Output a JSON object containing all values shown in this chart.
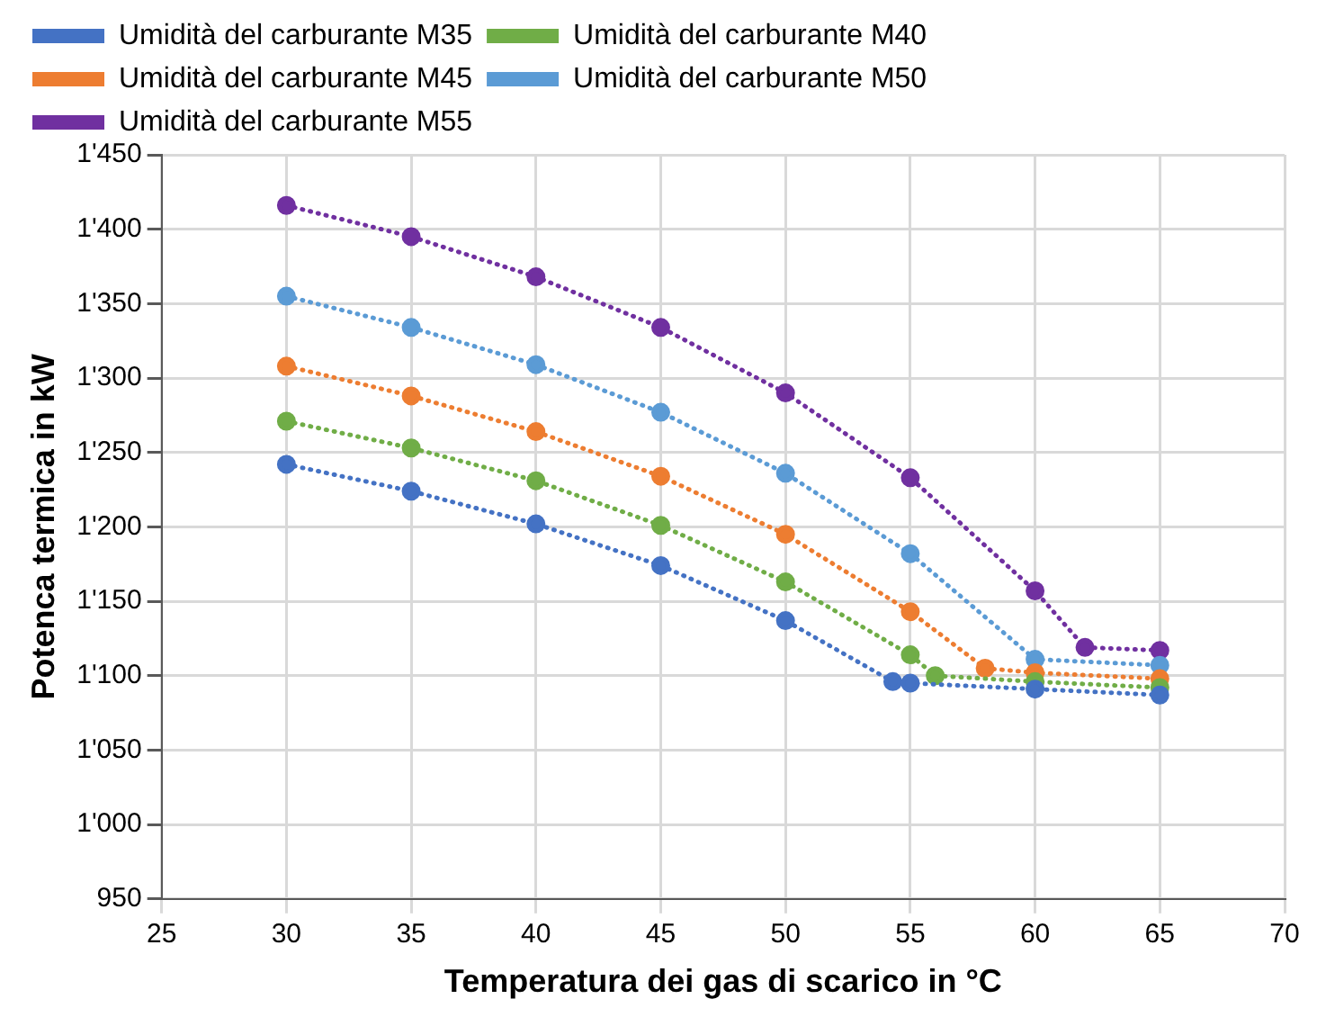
{
  "chart_data": {
    "type": "line",
    "xlabel": "Temperatura dei gas di scarico in °C",
    "ylabel": "Potenca termica in kW",
    "series": [
      {
        "name": "Umidità del carburante M35",
        "color": "#4472c4",
        "x": [
          30,
          35,
          40,
          45,
          50,
          54.3,
          55,
          60,
          65
        ],
        "values": [
          1242,
          1224,
          1202,
          1174,
          1137,
          1096,
          1095,
          1091,
          1087
        ]
      },
      {
        "name": "Umidità del carburante M40",
        "color": "#70ad47",
        "x": [
          30,
          35,
          40,
          45,
          50,
          55,
          56,
          60,
          65
        ],
        "values": [
          1271,
          1253,
          1231,
          1201,
          1163,
          1114,
          1100,
          1096,
          1092
        ]
      },
      {
        "name": "Umidità del carburante M45",
        "color": "#ed7d31",
        "x": [
          30,
          35,
          40,
          45,
          50,
          55,
          58,
          60,
          65
        ],
        "values": [
          1308,
          1288,
          1264,
          1234,
          1195,
          1143,
          1105,
          1102,
          1098
        ]
      },
      {
        "name": "Umidità del carburante M50",
        "color": "#5b9bd5",
        "x": [
          30,
          35,
          40,
          45,
          50,
          55,
          60,
          65
        ],
        "values": [
          1355,
          1334,
          1309,
          1277,
          1236,
          1182,
          1111,
          1107
        ]
      },
      {
        "name": "Umidità del carburante M55",
        "color": "#7030a0",
        "x": [
          30,
          35,
          40,
          45,
          50,
          55,
          60,
          62,
          65
        ],
        "values": [
          1416,
          1395,
          1368,
          1334,
          1290,
          1233,
          1157,
          1119,
          1117
        ]
      }
    ],
    "xlim": [
      25,
      70
    ],
    "xticks": [
      25,
      30,
      35,
      40,
      45,
      50,
      55,
      60,
      65,
      70
    ],
    "ylim": [
      950,
      1450
    ],
    "yticks": [
      950,
      {
        "value": 1000,
        "label": "1'000"
      },
      {
        "value": 1050,
        "label": "1'050"
      },
      {
        "value": 1100,
        "label": "1'100"
      },
      {
        "value": 1150,
        "label": "1'150"
      },
      {
        "value": 1200,
        "label": "1'200"
      },
      {
        "value": 1250,
        "label": "1'250"
      },
      {
        "value": 1300,
        "label": "1'300"
      },
      {
        "value": 1350,
        "label": "1'350"
      },
      {
        "value": 1400,
        "label": "1'400"
      },
      {
        "value": 1450,
        "label": "1'450"
      }
    ],
    "grid": true,
    "legend": "top",
    "marker": "circle",
    "line_style": "dotted"
  }
}
